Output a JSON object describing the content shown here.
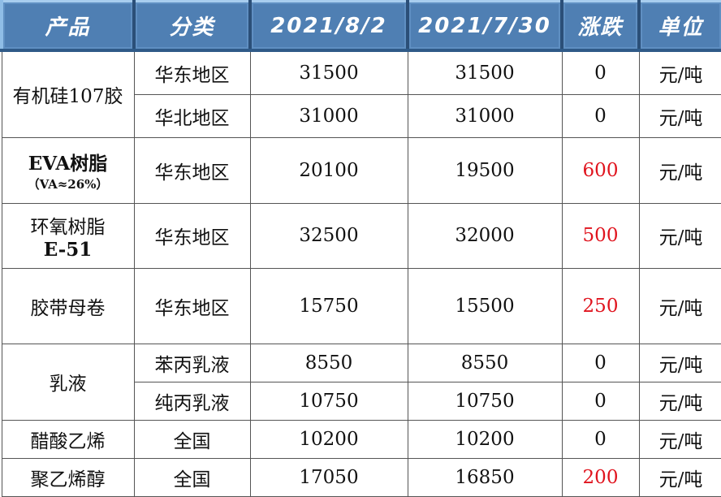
{
  "headers": [
    "产品",
    "分类",
    "2021/8/2",
    "2021/7/30",
    "涨跌",
    "单位"
  ],
  "colors": {
    "header_bg": "#4f7fb3",
    "rise": "#e0141e"
  },
  "rows": [
    {
      "product": "有机硅107胶",
      "category": "华东地区",
      "d1": "31500",
      "d2": "31500",
      "change": "0",
      "unit": "元/吨"
    },
    {
      "category": "华北地区",
      "d1": "31000",
      "d2": "31000",
      "change": "0",
      "unit": "元/吨"
    },
    {
      "product": "EVA树脂",
      "product_sub": "（VA≈26%）",
      "category": "华东地区",
      "d1": "20100",
      "d2": "19500",
      "change": "600",
      "unit": "元/吨"
    },
    {
      "product": "环氧树脂",
      "product_sub": "E-51",
      "category": "华东地区",
      "d1": "32500",
      "d2": "32000",
      "change": "500",
      "unit": "元/吨"
    },
    {
      "product": "胶带母卷",
      "category": "华东地区",
      "d1": "15750",
      "d2": "15500",
      "change": "250",
      "unit": "元/吨"
    },
    {
      "product": "乳液",
      "category": "苯丙乳液",
      "d1": "8550",
      "d2": "8550",
      "change": "0",
      "unit": "元/吨"
    },
    {
      "category": "纯丙乳液",
      "d1": "10750",
      "d2": "10750",
      "change": "0",
      "unit": "元/吨"
    },
    {
      "product": "醋酸乙烯",
      "category": "全国",
      "d1": "10200",
      "d2": "10200",
      "change": "0",
      "unit": "元/吨"
    },
    {
      "product": "聚乙烯醇",
      "category": "全国",
      "d1": "17050",
      "d2": "16850",
      "change": "200",
      "unit": "元/吨"
    }
  ]
}
